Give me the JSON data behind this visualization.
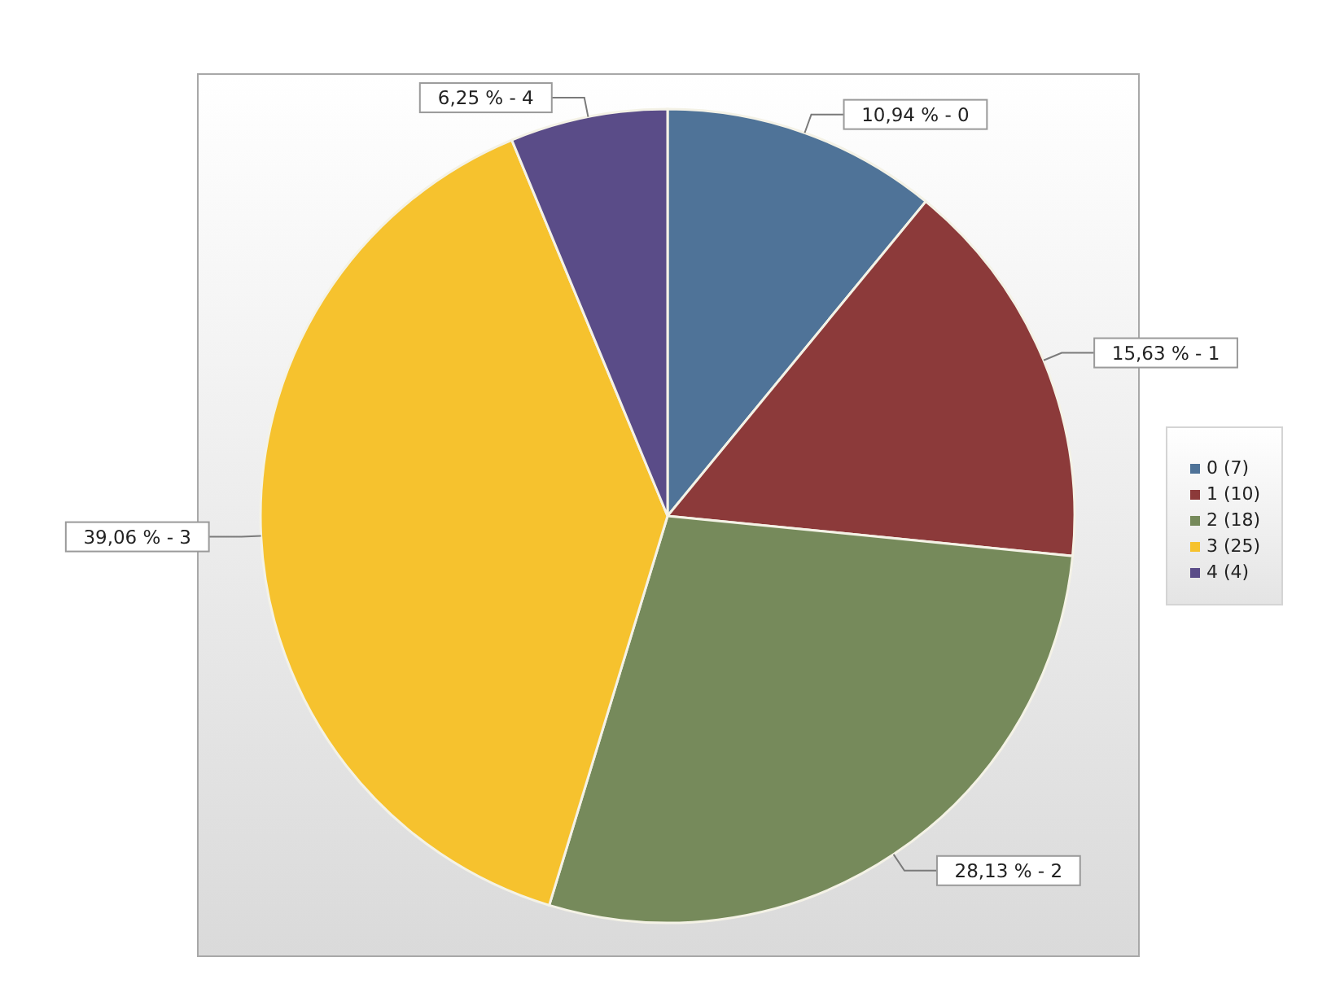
{
  "chart_data": {
    "type": "pie",
    "categories": [
      "0 (7)",
      "1 (10)",
      "2 (18)",
      "3 (25)",
      "4 (4)"
    ],
    "values": [
      10.94,
      15.63,
      28.13,
      39.06,
      6.25
    ],
    "colors": [
      "#4f7398",
      "#8c3a3a",
      "#768a5b",
      "#f6c22e",
      "#5a4c88"
    ],
    "value_labels": [
      "10,94 % - 0",
      "15,63 % - 1",
      "28,13 % - 2",
      "39,06 % - 3",
      "6,25 % - 4"
    ],
    "legend": "right"
  }
}
